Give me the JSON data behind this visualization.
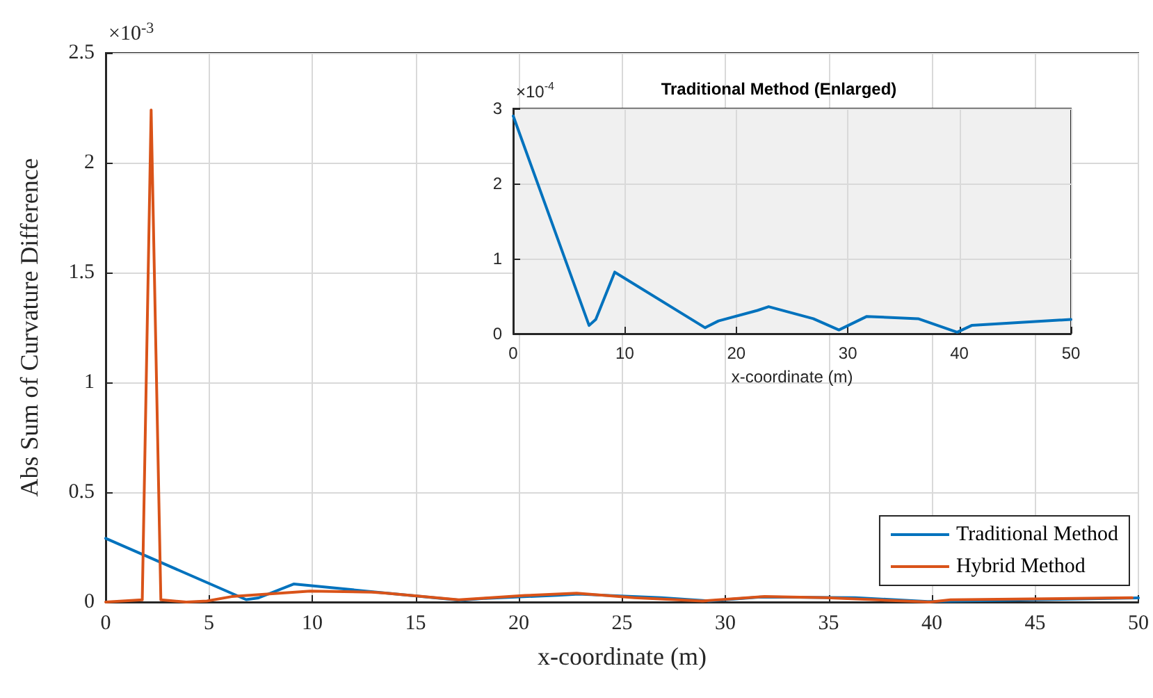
{
  "chart_data": [
    {
      "type": "line",
      "xlabel": "x-coordinate (m)",
      "ylabel": "Abs Sum of Curvature Difference",
      "annotations": [
        "×10$^{-3}$"
      ],
      "xlim": [
        0,
        50
      ],
      "xticks": [
        0,
        5,
        10,
        15,
        20,
        25,
        30,
        35,
        40,
        45,
        50
      ],
      "ylim": [
        0,
        2.5
      ],
      "yticks": [
        0,
        0.5,
        1,
        1.5,
        2,
        2.5
      ],
      "grid": true,
      "legend": "bottom right",
      "series": [
        {
          "name": "Traditional Method",
          "color": "#0072bd",
          "x": [
            0,
            6.8,
            7.4,
            9.1,
            17.2,
            18.4,
            21.9,
            22.9,
            26.9,
            29.2,
            31.7,
            36.3,
            39.8,
            50
          ],
          "values": [
            0.29,
            0.011,
            0.019,
            0.082,
            0.008,
            0.017,
            0.031,
            0.036,
            0.02,
            0.005,
            0.023,
            0.02,
            0.002,
            0.019
          ]
        },
        {
          "name": "Hybrid Method",
          "color": "#d95319",
          "x": [
            0,
            1.77,
            2.2,
            2.67,
            3.9,
            4.9,
            6.1,
            9.9,
            12.9,
            13.6,
            17.1,
            20.3,
            22.8,
            25.6,
            28.9,
            31.9,
            34.9,
            39.9,
            40.9,
            49.7
          ],
          "values": [
            0,
            0.01,
            2.24,
            0.01,
            0,
            0.005,
            0.025,
            0.05,
            0.045,
            0.04,
            0.01,
            0.03,
            0.04,
            0.02,
            0.005,
            0.025,
            0.02,
            0,
            0.01,
            0.02
          ]
        }
      ]
    },
    {
      "type": "line",
      "title": "Traditional Method (Enlarged)",
      "xlabel": "x-coordinate (m)",
      "annotations": [
        "×10$^{-4}$"
      ],
      "xlim": [
        0,
        50
      ],
      "xticks": [
        0,
        10,
        20,
        30,
        40,
        50
      ],
      "ylim": [
        0,
        3
      ],
      "yticks": [
        0,
        1,
        2,
        3
      ],
      "grid": true,
      "series": [
        {
          "color": "#0072bd",
          "x": [
            0,
            6.8,
            7.4,
            9.1,
            17.2,
            18.4,
            21.9,
            22.9,
            26.9,
            29.2,
            31.7,
            36.3,
            39.8,
            41.1,
            50
          ],
          "values": [
            2.9,
            0.11,
            0.19,
            0.82,
            0.08,
            0.17,
            0.31,
            0.36,
            0.2,
            0.05,
            0.23,
            0.2,
            0.02,
            0.11,
            0.19
          ]
        }
      ]
    }
  ]
}
